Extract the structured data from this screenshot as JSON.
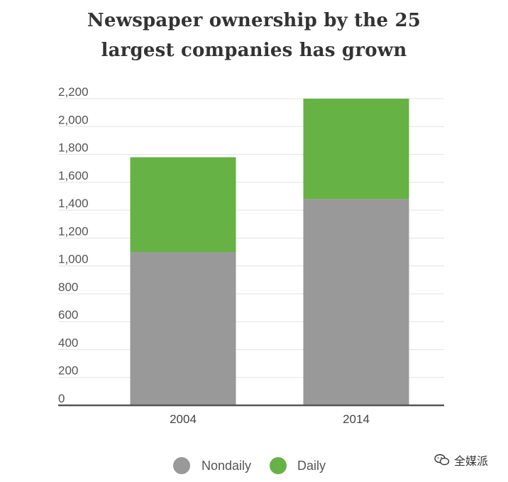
{
  "chart_data": {
    "type": "bar",
    "stacked": true,
    "title": "Newspaper ownership by the 25 largest companies has grown",
    "title_lines": [
      "Newspaper ownership by the 25",
      "largest companies has grown"
    ],
    "categories": [
      "2004",
      "2014"
    ],
    "series": [
      {
        "name": "Nondaily",
        "values": [
          1100,
          1480
        ],
        "color": "#999999"
      },
      {
        "name": "Daily",
        "values": [
          680,
          720
        ],
        "color": "#66b245"
      }
    ],
    "ylim": [
      0,
      2200
    ],
    "yticks": [
      0,
      200,
      400,
      600,
      800,
      1000,
      1200,
      1400,
      1600,
      1800,
      2000,
      2200
    ],
    "ytick_labels": [
      "0",
      "200",
      "400",
      "600",
      "800",
      "1,000",
      "1,200",
      "1,400",
      "1,600",
      "1,800",
      "2,000",
      "2,200"
    ],
    "grid": true,
    "legend_placement": "bottom-center",
    "xlabel": "",
    "ylabel": ""
  },
  "colors": {
    "grid": "#e3e3e3",
    "axis": "#555555"
  },
  "watermark": {
    "text": "全媒派",
    "icon": "wechat-icon"
  }
}
